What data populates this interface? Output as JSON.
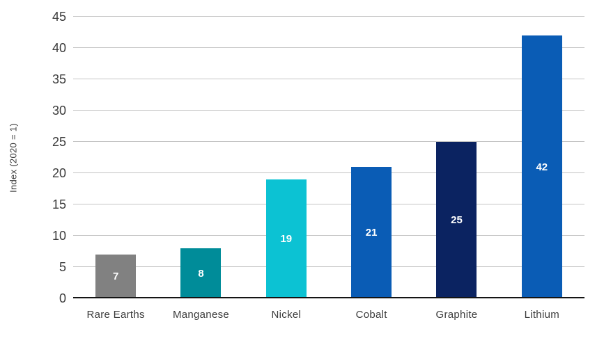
{
  "chart_data": {
    "type": "bar",
    "categories": [
      "Rare Earths",
      "Manganese",
      "Nickel",
      "Cobalt",
      "Graphite",
      "Lithium"
    ],
    "values": [
      7,
      8,
      19,
      21,
      25,
      42
    ],
    "bar_colors": [
      "#818181",
      "#008c99",
      "#0cc2d3",
      "#0a5cb5",
      "#0b2361",
      "#0a5cb5"
    ],
    "value_labels": [
      "7",
      "8",
      "19",
      "21",
      "25",
      "42"
    ],
    "value_label_color": "#ffffff",
    "title": "",
    "xlabel": "",
    "ylabel": "Index (2020 = 1)",
    "ylim": [
      0,
      45
    ],
    "yticks": [
      0,
      5,
      10,
      15,
      20,
      25,
      30,
      35,
      40,
      45
    ],
    "grid": "horizontal",
    "gridline_color": "#c3c3c3",
    "baseline_color": "#141414",
    "legend": "none",
    "background": "#ffffff"
  }
}
